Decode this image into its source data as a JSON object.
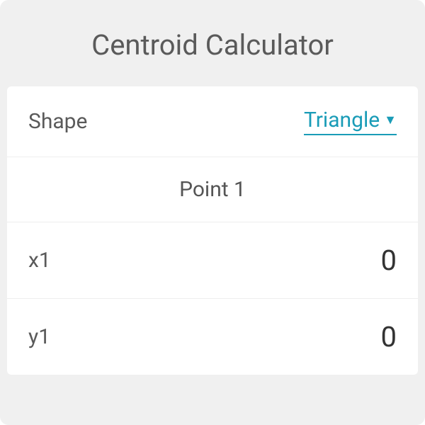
{
  "header": {
    "title": "Centroid Calculator"
  },
  "shape": {
    "label": "Shape",
    "selected": "Triangle"
  },
  "point1": {
    "header": "Point 1",
    "x1": {
      "label": "x1",
      "value": "0"
    },
    "y1": {
      "label": "y1",
      "value": "0"
    }
  },
  "colors": {
    "background": "#f0f0f0",
    "content_bg": "#ffffff",
    "link": "#1a9cb7",
    "text_muted": "#5a5a5a",
    "text_value": "#333333",
    "border": "#eeeeee"
  }
}
